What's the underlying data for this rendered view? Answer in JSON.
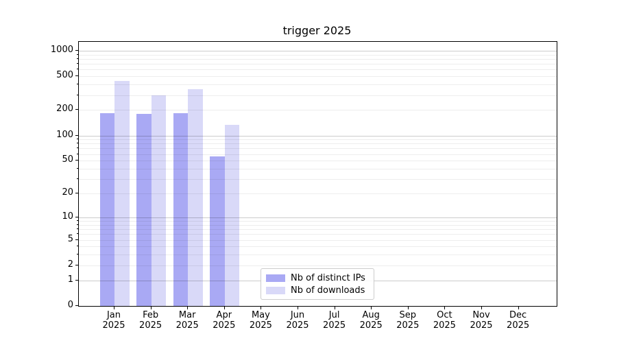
{
  "chart_data": {
    "type": "bar",
    "title": "trigger 2025",
    "categories": [
      "Jan 2025",
      "Feb 2025",
      "Mar 2025",
      "Apr 2025",
      "May 2025",
      "Jun 2025",
      "Jul 2025",
      "Aug 2025",
      "Sep 2025",
      "Oct 2025",
      "Nov 2025",
      "Dec 2025"
    ],
    "month_line1": [
      "Jan",
      "Feb",
      "Mar",
      "Apr",
      "May",
      "Jun",
      "Jul",
      "Aug",
      "Sep",
      "Oct",
      "Nov",
      "Dec"
    ],
    "month_line2": "2025",
    "series": [
      {
        "name": "Nb of distinct IPs",
        "color": "#a9a9f4",
        "values": [
          183,
          179,
          185,
          56,
          0,
          0,
          0,
          0,
          0,
          0,
          0,
          0
        ]
      },
      {
        "name": "Nb of downloads",
        "color": "#d9d9f8",
        "values": [
          440,
          297,
          350,
          133,
          0,
          0,
          0,
          0,
          0,
          0,
          0,
          0
        ]
      }
    ],
    "yscale": "log1p",
    "ylim": [
      0,
      1270
    ],
    "yticks": [
      0,
      1,
      2,
      5,
      10,
      20,
      50,
      100,
      200,
      500,
      1000
    ],
    "grid_major_at": [
      1,
      10,
      100,
      1000
    ],
    "grid_minor_rule": "2..9 per decade (2,3,...,9, 20,...,90, 200,...,900)",
    "legend_position": "lower center",
    "grid": true,
    "xlabel": "",
    "ylabel": ""
  }
}
